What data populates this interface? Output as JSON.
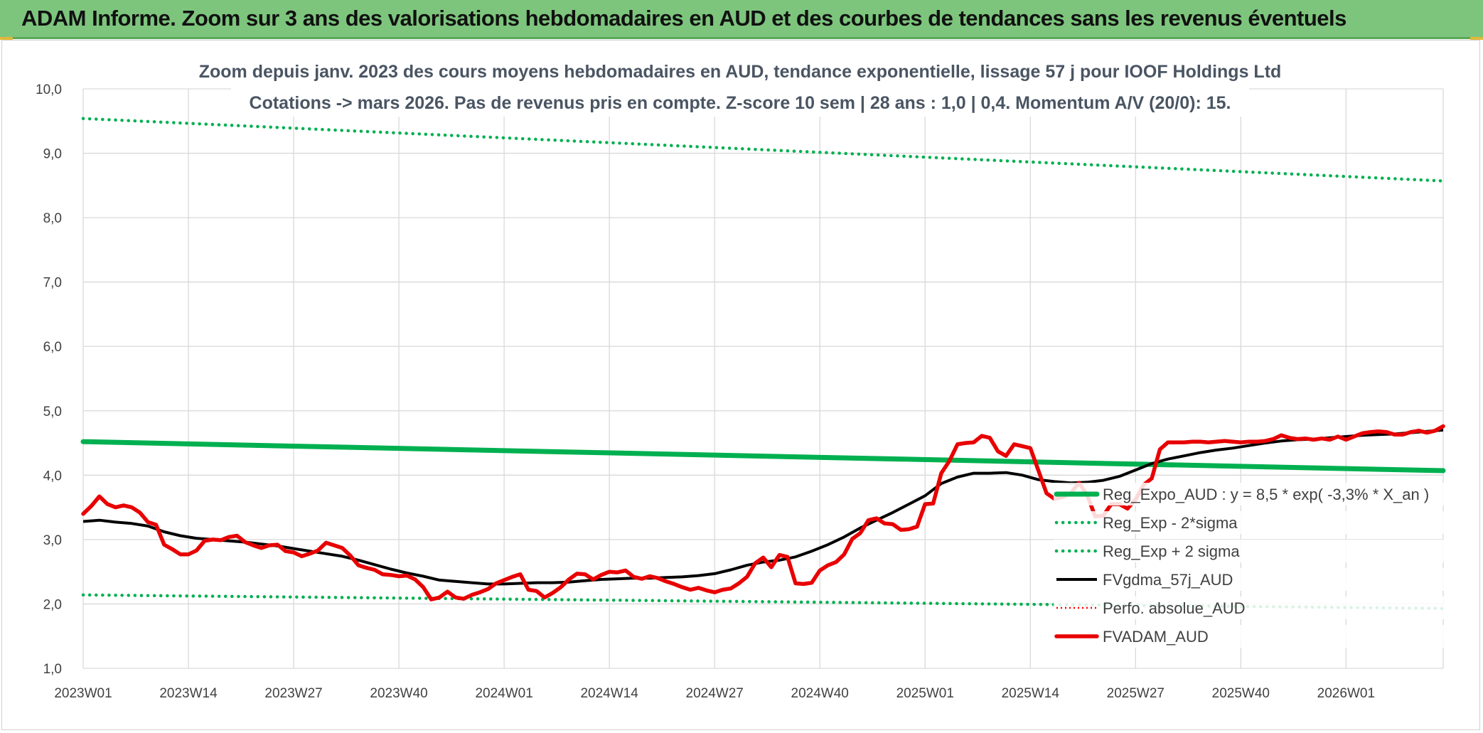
{
  "header": {
    "title": "ADAM Informe. Zoom sur 3 ans des valorisations hebdomadaires en AUD et des courbes de tendances sans les revenus éventuels"
  },
  "chart_data": {
    "type": "line",
    "title_lines": [
      "Zoom depuis janv. 2023 des cours moyens hebdomadaires en AUD, tendance exponentielle, lissage 57 j pour IOOF Holdings Ltd",
      "Cotations -> mars 2026. Pas de revenus pris en compte. Z-score 10 sem | 28 ans : 1,0 | 0,4. Momentum A/V (20/0): 15."
    ],
    "ylim": [
      1.0,
      10.0
    ],
    "y_ticks": [
      {
        "value": 10,
        "label": "10,0"
      },
      {
        "value": 9,
        "label": "9,0"
      },
      {
        "value": 8,
        "label": "8,0"
      },
      {
        "value": 7,
        "label": "7,0"
      },
      {
        "value": 6,
        "label": "6,0"
      },
      {
        "value": 5,
        "label": "5,0"
      },
      {
        "value": 4,
        "label": "4,0"
      },
      {
        "value": 3,
        "label": "3,0"
      },
      {
        "value": 2,
        "label": "2,0"
      },
      {
        "value": 1,
        "label": "1,0"
      }
    ],
    "x_range_weeks": [
      0,
      168
    ],
    "x_ticks": [
      {
        "week": 0,
        "label": "2023W01"
      },
      {
        "week": 13,
        "label": "2023W14"
      },
      {
        "week": 26,
        "label": "2023W27"
      },
      {
        "week": 39,
        "label": "2023W40"
      },
      {
        "week": 52,
        "label": "2024W01"
      },
      {
        "week": 65,
        "label": "2024W14"
      },
      {
        "week": 78,
        "label": "2024W27"
      },
      {
        "week": 91,
        "label": "2024W40"
      },
      {
        "week": 104,
        "label": "2025W01"
      },
      {
        "week": 117,
        "label": "2025W14"
      },
      {
        "week": 130,
        "label": "2025W27"
      },
      {
        "week": 143,
        "label": "2025W40"
      },
      {
        "week": 156,
        "label": "2026W01"
      }
    ],
    "grid": true,
    "legend_position": "lower-right",
    "series": [
      {
        "name": "Reg_Expo_AUD : y = 8,5 * exp( -3,3% *  X_an )",
        "color": "#00b050",
        "style": "solid-thick",
        "points": [
          [
            0,
            4.52
          ],
          [
            168,
            4.07
          ]
        ]
      },
      {
        "name": "Reg_Exp - 2*sigma",
        "color": "#00b050",
        "style": "dotted",
        "points": [
          [
            0,
            2.14
          ],
          [
            168,
            1.93
          ]
        ]
      },
      {
        "name": "Reg_Exp + 2 sigma",
        "color": "#00b050",
        "style": "dotted",
        "points": [
          [
            0,
            9.54
          ],
          [
            168,
            8.57
          ]
        ]
      },
      {
        "name": "FVgdma_57j_AUD",
        "color": "#000000",
        "style": "solid",
        "points": [
          [
            0,
            3.28
          ],
          [
            2,
            3.3
          ],
          [
            4,
            3.27
          ],
          [
            6,
            3.25
          ],
          [
            8,
            3.21
          ],
          [
            10,
            3.12
          ],
          [
            12,
            3.06
          ],
          [
            14,
            3.02
          ],
          [
            16,
            3.0
          ],
          [
            18,
            2.98
          ],
          [
            20,
            2.96
          ],
          [
            22,
            2.93
          ],
          [
            24,
            2.9
          ],
          [
            26,
            2.86
          ],
          [
            28,
            2.82
          ],
          [
            30,
            2.78
          ],
          [
            32,
            2.74
          ],
          [
            34,
            2.68
          ],
          [
            36,
            2.61
          ],
          [
            38,
            2.54
          ],
          [
            40,
            2.48
          ],
          [
            42,
            2.43
          ],
          [
            44,
            2.37
          ],
          [
            46,
            2.35
          ],
          [
            48,
            2.33
          ],
          [
            50,
            2.31
          ],
          [
            52,
            2.31
          ],
          [
            54,
            2.32
          ],
          [
            56,
            2.33
          ],
          [
            58,
            2.33
          ],
          [
            60,
            2.34
          ],
          [
            62,
            2.36
          ],
          [
            64,
            2.38
          ],
          [
            66,
            2.39
          ],
          [
            68,
            2.4
          ],
          [
            70,
            2.4
          ],
          [
            72,
            2.41
          ],
          [
            74,
            2.42
          ],
          [
            76,
            2.44
          ],
          [
            78,
            2.47
          ],
          [
            80,
            2.53
          ],
          [
            82,
            2.6
          ],
          [
            84,
            2.65
          ],
          [
            86,
            2.68
          ],
          [
            88,
            2.73
          ],
          [
            90,
            2.82
          ],
          [
            92,
            2.92
          ],
          [
            94,
            3.04
          ],
          [
            96,
            3.18
          ],
          [
            98,
            3.3
          ],
          [
            100,
            3.42
          ],
          [
            102,
            3.55
          ],
          [
            104,
            3.68
          ],
          [
            106,
            3.87
          ],
          [
            108,
            3.97
          ],
          [
            110,
            4.03
          ],
          [
            112,
            4.03
          ],
          [
            114,
            4.04
          ],
          [
            116,
            4.0
          ],
          [
            118,
            3.93
          ],
          [
            120,
            3.9
          ],
          [
            122,
            3.88
          ],
          [
            124,
            3.89
          ],
          [
            126,
            3.92
          ],
          [
            128,
            3.98
          ],
          [
            130,
            4.08
          ],
          [
            132,
            4.18
          ],
          [
            134,
            4.25
          ],
          [
            136,
            4.3
          ],
          [
            138,
            4.35
          ],
          [
            140,
            4.39
          ],
          [
            142,
            4.42
          ],
          [
            144,
            4.46
          ],
          [
            146,
            4.5
          ],
          [
            148,
            4.53
          ],
          [
            150,
            4.55
          ],
          [
            152,
            4.56
          ],
          [
            154,
            4.58
          ],
          [
            156,
            4.6
          ],
          [
            158,
            4.62
          ],
          [
            160,
            4.63
          ],
          [
            162,
            4.64
          ],
          [
            164,
            4.66
          ],
          [
            166,
            4.68
          ],
          [
            168,
            4.7
          ]
        ]
      },
      {
        "name": "Perfo. absolue_AUD",
        "color": "#ff0000",
        "style": "dotted-thin",
        "points": []
      },
      {
        "name": "FVADAM_AUD",
        "color": "#e80000",
        "style": "solid-thick",
        "points": [
          [
            0,
            3.4
          ],
          [
            1,
            3.52
          ],
          [
            2,
            3.67
          ],
          [
            3,
            3.55
          ],
          [
            4,
            3.5
          ],
          [
            5,
            3.53
          ],
          [
            6,
            3.5
          ],
          [
            7,
            3.42
          ],
          [
            8,
            3.27
          ],
          [
            9,
            3.23
          ],
          [
            10,
            2.92
          ],
          [
            11,
            2.85
          ],
          [
            12,
            2.77
          ],
          [
            13,
            2.77
          ],
          [
            14,
            2.83
          ],
          [
            15,
            2.98
          ],
          [
            16,
            3.0
          ],
          [
            17,
            2.99
          ],
          [
            18,
            3.04
          ],
          [
            19,
            3.06
          ],
          [
            20,
            2.96
          ],
          [
            21,
            2.91
          ],
          [
            22,
            2.87
          ],
          [
            23,
            2.91
          ],
          [
            24,
            2.92
          ],
          [
            25,
            2.82
          ],
          [
            26,
            2.8
          ],
          [
            27,
            2.74
          ],
          [
            28,
            2.78
          ],
          [
            29,
            2.83
          ],
          [
            30,
            2.95
          ],
          [
            31,
            2.91
          ],
          [
            32,
            2.87
          ],
          [
            33,
            2.75
          ],
          [
            34,
            2.6
          ],
          [
            35,
            2.56
          ],
          [
            36,
            2.53
          ],
          [
            37,
            2.46
          ],
          [
            38,
            2.45
          ],
          [
            39,
            2.43
          ],
          [
            40,
            2.44
          ],
          [
            41,
            2.38
          ],
          [
            42,
            2.26
          ],
          [
            43,
            2.07
          ],
          [
            44,
            2.1
          ],
          [
            45,
            2.19
          ],
          [
            46,
            2.1
          ],
          [
            47,
            2.08
          ],
          [
            48,
            2.14
          ],
          [
            49,
            2.18
          ],
          [
            50,
            2.23
          ],
          [
            51,
            2.32
          ],
          [
            52,
            2.37
          ],
          [
            53,
            2.42
          ],
          [
            54,
            2.46
          ],
          [
            55,
            2.22
          ],
          [
            56,
            2.2
          ],
          [
            57,
            2.1
          ],
          [
            58,
            2.17
          ],
          [
            59,
            2.26
          ],
          [
            60,
            2.38
          ],
          [
            61,
            2.47
          ],
          [
            62,
            2.46
          ],
          [
            63,
            2.38
          ],
          [
            64,
            2.45
          ],
          [
            65,
            2.5
          ],
          [
            66,
            2.49
          ],
          [
            67,
            2.52
          ],
          [
            68,
            2.42
          ],
          [
            69,
            2.39
          ],
          [
            70,
            2.43
          ],
          [
            71,
            2.4
          ],
          [
            72,
            2.35
          ],
          [
            73,
            2.31
          ],
          [
            74,
            2.26
          ],
          [
            75,
            2.22
          ],
          [
            76,
            2.25
          ],
          [
            77,
            2.21
          ],
          [
            78,
            2.18
          ],
          [
            79,
            2.22
          ],
          [
            80,
            2.24
          ],
          [
            81,
            2.32
          ],
          [
            82,
            2.42
          ],
          [
            83,
            2.63
          ],
          [
            84,
            2.72
          ],
          [
            85,
            2.57
          ],
          [
            86,
            2.76
          ],
          [
            87,
            2.73
          ],
          [
            88,
            2.32
          ],
          [
            89,
            2.31
          ],
          [
            90,
            2.33
          ],
          [
            91,
            2.52
          ],
          [
            92,
            2.6
          ],
          [
            93,
            2.65
          ],
          [
            94,
            2.77
          ],
          [
            95,
            3.01
          ],
          [
            96,
            3.1
          ],
          [
            97,
            3.3
          ],
          [
            98,
            3.33
          ],
          [
            99,
            3.25
          ],
          [
            100,
            3.24
          ],
          [
            101,
            3.15
          ],
          [
            102,
            3.16
          ],
          [
            103,
            3.2
          ],
          [
            104,
            3.55
          ],
          [
            105,
            3.56
          ],
          [
            106,
            4.03
          ],
          [
            107,
            4.22
          ],
          [
            108,
            4.48
          ],
          [
            109,
            4.5
          ],
          [
            110,
            4.51
          ],
          [
            111,
            4.61
          ],
          [
            112,
            4.58
          ],
          [
            113,
            4.37
          ],
          [
            114,
            4.3
          ],
          [
            115,
            4.48
          ],
          [
            116,
            4.45
          ],
          [
            117,
            4.42
          ],
          [
            118,
            4.07
          ],
          [
            119,
            3.72
          ],
          [
            120,
            3.63
          ],
          [
            121,
            3.66
          ],
          [
            122,
            3.72
          ],
          [
            123,
            3.88
          ],
          [
            124,
            3.7
          ],
          [
            125,
            3.36
          ],
          [
            126,
            3.37
          ],
          [
            127,
            3.55
          ],
          [
            128,
            3.55
          ],
          [
            129,
            3.48
          ],
          [
            130,
            3.62
          ],
          [
            131,
            3.85
          ],
          [
            132,
            3.95
          ],
          [
            133,
            4.4
          ],
          [
            134,
            4.51
          ],
          [
            135,
            4.51
          ],
          [
            136,
            4.51
          ],
          [
            137,
            4.52
          ],
          [
            138,
            4.52
          ],
          [
            139,
            4.51
          ],
          [
            140,
            4.52
          ],
          [
            141,
            4.53
          ],
          [
            142,
            4.52
          ],
          [
            143,
            4.51
          ],
          [
            144,
            4.52
          ],
          [
            145,
            4.52
          ],
          [
            146,
            4.53
          ],
          [
            147,
            4.56
          ],
          [
            148,
            4.62
          ],
          [
            149,
            4.58
          ],
          [
            150,
            4.56
          ],
          [
            151,
            4.57
          ],
          [
            152,
            4.55
          ],
          [
            153,
            4.57
          ],
          [
            154,
            4.55
          ],
          [
            155,
            4.6
          ],
          [
            156,
            4.55
          ],
          [
            157,
            4.6
          ],
          [
            158,
            4.65
          ],
          [
            159,
            4.67
          ],
          [
            160,
            4.68
          ],
          [
            161,
            4.67
          ],
          [
            162,
            4.63
          ],
          [
            163,
            4.63
          ],
          [
            164,
            4.67
          ],
          [
            165,
            4.69
          ],
          [
            166,
            4.66
          ],
          [
            167,
            4.69
          ],
          [
            168,
            4.76
          ]
        ]
      }
    ]
  }
}
